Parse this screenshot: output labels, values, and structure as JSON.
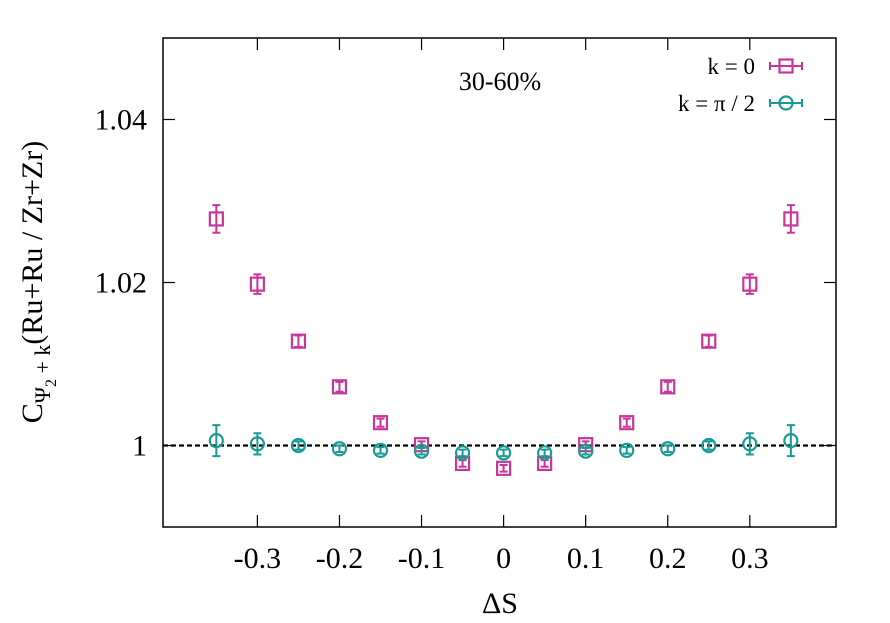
{
  "chart_data": {
    "type": "scatter",
    "annotation": "30-60%",
    "xlabel": "ΔS",
    "ylabel": {
      "main": "C",
      "sub": "Ψ",
      "subsub": "2",
      "sub_rest": " + k",
      "rest": "(Ru+Ru / Zr+Zr)"
    },
    "x": [
      -0.35,
      -0.3,
      -0.25,
      -0.2,
      -0.15,
      -0.1,
      -0.05,
      0,
      0.05,
      0.1,
      0.15,
      0.2,
      0.25,
      0.3,
      0.35
    ],
    "series": [
      {
        "name": "k = 0",
        "color": "#c8369b",
        "marker": "square",
        "values": [
          1.0278,
          1.0198,
          1.0128,
          1.0072,
          1.0028,
          1.0001,
          0.9978,
          0.9972,
          0.9978,
          1.0001,
          1.0028,
          1.0072,
          1.0128,
          1.0198,
          1.0278
        ],
        "errors": [
          0.0017,
          0.0012,
          0.0007,
          0.0006,
          0.0005,
          0.0004,
          0.0004,
          0.0004,
          0.0004,
          0.0004,
          0.0005,
          0.0006,
          0.0007,
          0.0012,
          0.0017
        ]
      },
      {
        "name": "k = π / 2",
        "color": "#1a9a94",
        "marker": "circle",
        "values": [
          1.0006,
          1.0002,
          1.0,
          0.9996,
          0.9994,
          0.9993,
          0.9991,
          0.9991,
          0.9991,
          0.9993,
          0.9994,
          0.9996,
          1.0,
          1.0002,
          1.0006
        ],
        "errors": [
          0.0019,
          0.0013,
          0.0005,
          0.0004,
          0.0004,
          0.0004,
          0.0004,
          0.0004,
          0.0004,
          0.0004,
          0.0004,
          0.0004,
          0.0005,
          0.0013,
          0.0019
        ]
      }
    ],
    "reference_line": 1,
    "xlim": [
      -0.415,
      0.405
    ],
    "ylim": [
      0.99,
      1.05
    ],
    "xticks": [
      -0.3,
      -0.2,
      -0.1,
      0,
      0.1,
      0.2,
      0.3
    ],
    "yticks": [
      1,
      1.02,
      1.04
    ],
    "legend": "top-right"
  }
}
